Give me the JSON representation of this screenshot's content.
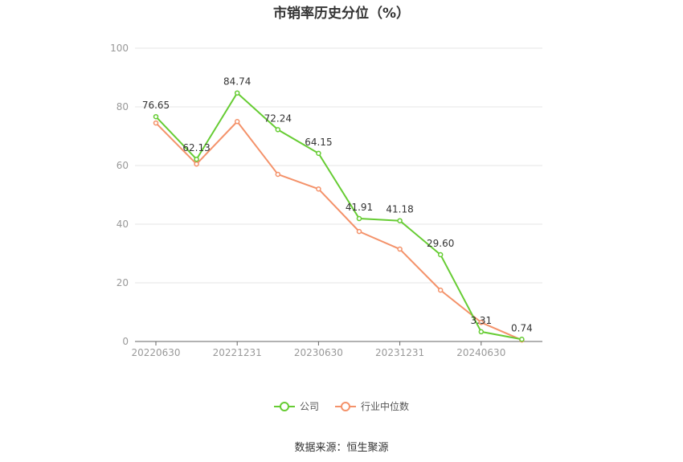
{
  "chart_data": {
    "type": "line",
    "title": "市销率历史分位（%）",
    "x": [
      "20220630",
      "20220930",
      "20221231",
      "20230331",
      "20230630",
      "20230930",
      "20231231",
      "20240331",
      "20240630",
      "20240930"
    ],
    "x_tick_labels": [
      "20220630",
      "20221231",
      "20230630",
      "20231231",
      "20240630"
    ],
    "ylim": [
      0,
      100
    ],
    "y_ticks": [
      0,
      20,
      40,
      60,
      80,
      100
    ],
    "grid": true,
    "legend_position": "bottom",
    "series": [
      {
        "name": "公司",
        "color": "#66cc33",
        "values": [
          76.65,
          62.13,
          84.74,
          72.24,
          64.15,
          41.91,
          41.18,
          29.6,
          3.31,
          0.74
        ],
        "labels": [
          "76.65",
          "62.13",
          "84.74",
          "72.24",
          "64.15",
          "41.91",
          "41.18",
          "29.60",
          "3.31",
          "0.74"
        ]
      },
      {
        "name": "行业中位数",
        "color": "#f4926a",
        "values": [
          74.5,
          60.5,
          75.0,
          57.0,
          52.0,
          37.5,
          31.5,
          17.5,
          6.5,
          0.5
        ]
      }
    ]
  },
  "source": "数据来源：恒生聚源"
}
